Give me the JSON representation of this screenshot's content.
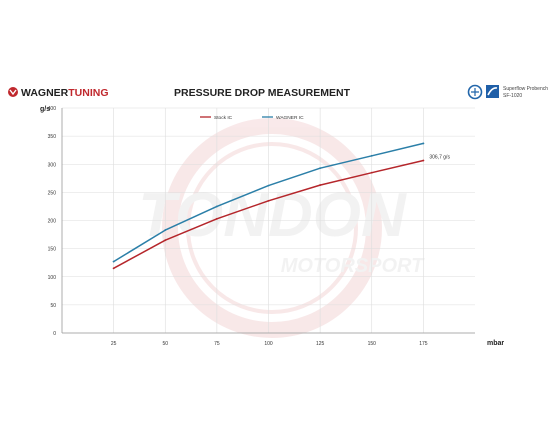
{
  "header": {
    "brand_prefix": "WAGNER",
    "brand_suffix": "TUNING",
    "title": "PRESSURE DROP MEASUREMENT",
    "bench_line1": "Superflow Probench",
    "bench_line2": "SF-1020"
  },
  "watermark": {
    "line1": "TONDON",
    "line2": "MOTORSPORT"
  },
  "colors": {
    "brand_red": "#c0282d",
    "stock": "#b5262b",
    "wagner": "#2b7fa8",
    "grid": "#dddddd",
    "axis_text": "#333333"
  },
  "chart_data": {
    "type": "line",
    "title": "PRESSURE DROP MEASUREMENT",
    "xlabel": "mbar",
    "ylabel": "g/s",
    "x": [
      25,
      50,
      75,
      100,
      125,
      150,
      175
    ],
    "xlim": [
      0,
      200
    ],
    "ylim": [
      0,
      400
    ],
    "x_ticks": [
      "25",
      "50",
      "75",
      "100",
      "125",
      "150",
      "175"
    ],
    "y_ticks": [
      "0",
      "50",
      "100",
      "150",
      "200",
      "250",
      "300",
      "350",
      "400"
    ],
    "grid": true,
    "legend_position": "top-center",
    "series": [
      {
        "name": "Stock IC",
        "color": "#b5262b",
        "values": [
          115,
          165,
          203,
          235,
          263,
          285,
          306.7
        ]
      },
      {
        "name": "WAGNER IC",
        "color": "#2b7fa8",
        "values": [
          127,
          183,
          225,
          262,
          293,
          315,
          337
        ]
      }
    ],
    "annotations": [
      {
        "text": "306,7 g/s",
        "x": 175,
        "y": 306.7
      }
    ]
  }
}
